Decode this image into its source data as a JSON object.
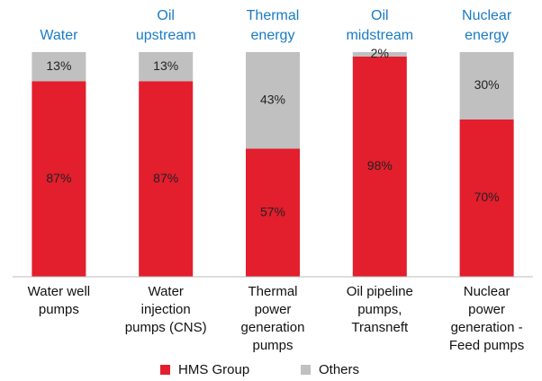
{
  "chart_data": {
    "type": "stacked_bar",
    "annotations": [
      [
        "Water"
      ],
      [
        "Oil",
        "upstream"
      ],
      [
        "Thermal",
        "energy"
      ],
      [
        "Oil",
        "midstream"
      ],
      [
        "Nuclear",
        "energy"
      ]
    ],
    "categories": [
      [
        "Water well",
        "pumps"
      ],
      [
        "Water",
        "injection",
        "pumps (CNS)"
      ],
      [
        "Thermal",
        "power",
        "generation",
        "pumps"
      ],
      [
        "Oil pipeline",
        "pumps,",
        "Transneft"
      ],
      [
        "Nuclear",
        "power",
        "generation -",
        "Feed pumps"
      ]
    ],
    "ylim": [
      0,
      100
    ],
    "series": [
      {
        "name": "HMS Group",
        "color": "#e31e2d",
        "values": [
          87,
          87,
          57,
          98,
          70
        ],
        "value_labels": [
          "87%",
          "87%",
          "57%",
          "98%",
          "70%"
        ]
      },
      {
        "name": "Others",
        "color": "#c0c0c0",
        "values": [
          13,
          13,
          43,
          2,
          30
        ],
        "value_labels": [
          "13%",
          "13%",
          "43%",
          "2%",
          "30%"
        ]
      }
    ]
  }
}
